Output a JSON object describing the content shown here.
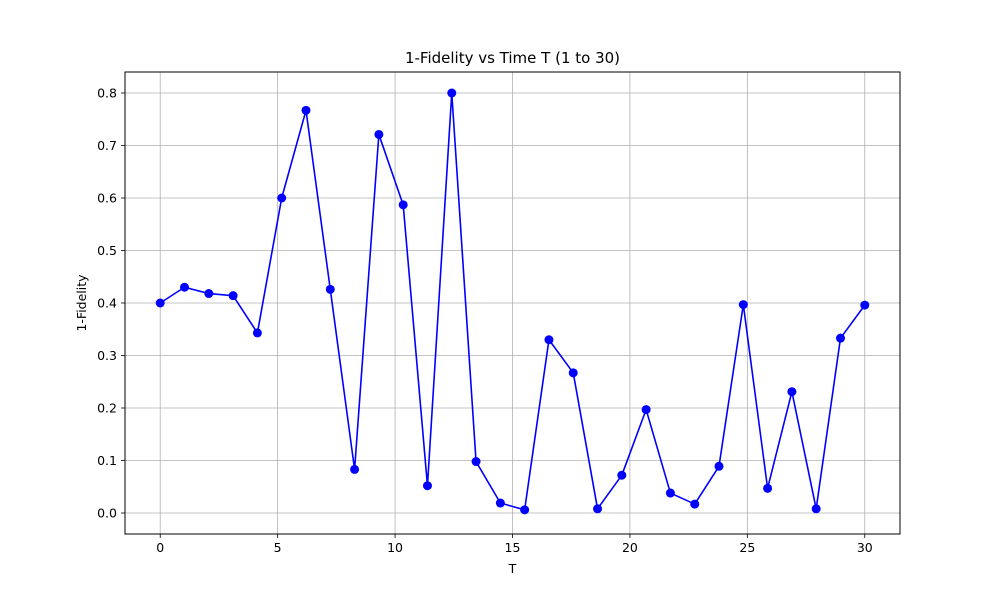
{
  "chart_data": {
    "type": "line",
    "title": "1-Fidelity vs Time T (1 to 30)",
    "xlabel": "T",
    "ylabel": "1-Fidelity",
    "xlim": [
      -1.5,
      31.5
    ],
    "ylim": [
      -0.04,
      0.84
    ],
    "x_ticks": [
      0,
      5,
      10,
      15,
      20,
      25,
      30
    ],
    "y_ticks": [
      0.0,
      0.1,
      0.2,
      0.3,
      0.4,
      0.5,
      0.6,
      0.7,
      0.8
    ],
    "x_tick_labels": [
      "0",
      "5",
      "10",
      "15",
      "20",
      "25",
      "30"
    ],
    "y_tick_labels": [
      "0.0",
      "0.1",
      "0.2",
      "0.3",
      "0.4",
      "0.5",
      "0.6",
      "0.7",
      "0.8"
    ],
    "grid": true,
    "marker": "circle",
    "series": [
      {
        "color": "#0000ff",
        "x": [
          0,
          1.034,
          2.069,
          3.103,
          4.138,
          5.172,
          6.207,
          7.241,
          8.276,
          9.31,
          10.345,
          11.379,
          12.414,
          13.448,
          14.483,
          15.517,
          16.552,
          17.586,
          18.621,
          19.655,
          20.69,
          21.724,
          22.759,
          23.793,
          24.828,
          25.862,
          26.897,
          27.931,
          28.966,
          30
        ],
        "y": [
          0.4,
          0.43,
          0.418,
          0.414,
          0.343,
          0.6,
          0.767,
          0.426,
          0.083,
          0.721,
          0.587,
          0.052,
          0.8,
          0.098,
          0.019,
          0.006,
          0.33,
          0.267,
          0.008,
          0.072,
          0.197,
          0.038,
          0.017,
          0.089,
          0.397,
          0.047,
          0.231,
          0.008,
          0.333,
          0.396
        ]
      }
    ]
  }
}
